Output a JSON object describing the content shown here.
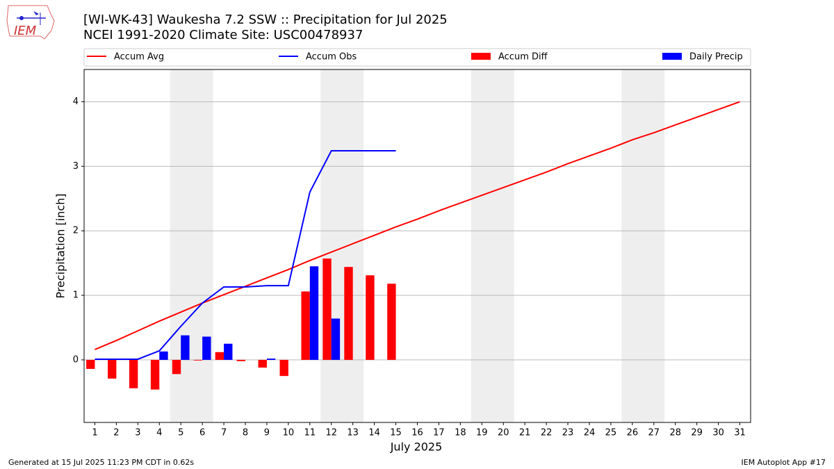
{
  "chart_data": {
    "type": "bar",
    "title": "[WI-WK-43] Waukesha 7.2 SSW :: Precipitation for Jul 2025",
    "subtitle": "NCEI 1991-2020 Climate Site: USC00478937",
    "x_label": "July 2025",
    "y_label": "Precipitation [inch]",
    "logo_text": "IEM",
    "footer_left": "Generated at 15 Jul 2025 11:23 PM CDT in 0.62s",
    "footer_right": "IEM Autoplot App #17",
    "x": [
      1,
      2,
      3,
      4,
      5,
      6,
      7,
      8,
      9,
      10,
      11,
      12,
      13,
      14,
      15,
      16,
      17,
      18,
      19,
      20,
      21,
      22,
      23,
      24,
      25,
      26,
      27,
      28,
      29,
      30,
      31
    ],
    "xlim": [
      0.5,
      31.5
    ],
    "xticks": [
      1,
      2,
      3,
      4,
      5,
      6,
      7,
      8,
      9,
      10,
      11,
      12,
      13,
      14,
      15,
      16,
      17,
      18,
      19,
      20,
      21,
      22,
      23,
      24,
      25,
      26,
      27,
      28,
      29,
      30,
      31
    ],
    "ylim": [
      -0.97,
      4.5
    ],
    "yticks": [
      0,
      1,
      2,
      3,
      4
    ],
    "grid": true,
    "shaded_spans": [
      [
        4.5,
        6.5
      ],
      [
        11.5,
        13.5
      ],
      [
        18.5,
        20.5
      ],
      [
        25.5,
        27.5
      ]
    ],
    "shade_color": "#eeeeee",
    "series": [
      {
        "name": "Accum Avg",
        "kind": "line",
        "color": "#ff0000",
        "values": [
          0.16,
          0.3,
          0.45,
          0.6,
          0.74,
          0.88,
          1.01,
          1.14,
          1.27,
          1.4,
          1.54,
          1.67,
          1.8,
          1.93,
          2.06,
          2.18,
          2.31,
          2.43,
          2.55,
          2.67,
          2.79,
          2.91,
          3.04,
          3.16,
          3.28,
          3.41,
          3.52,
          3.64,
          3.76,
          3.88,
          4.0
        ]
      },
      {
        "name": "Accum Obs",
        "kind": "line",
        "color": "#0000ff",
        "values": [
          0.01,
          0.01,
          0.01,
          0.14,
          0.52,
          0.88,
          1.13,
          1.13,
          1.15,
          1.15,
          2.6,
          3.24,
          3.24,
          3.24,
          3.24,
          null,
          null,
          null,
          null,
          null,
          null,
          null,
          null,
          null,
          null,
          null,
          null,
          null,
          null,
          null,
          null
        ]
      },
      {
        "name": "Accum Diff",
        "kind": "bar",
        "color": "#ff0000",
        "offset": -0.4,
        "values": [
          -0.14,
          -0.29,
          -0.44,
          -0.46,
          -0.22,
          -0.01,
          0.12,
          -0.02,
          -0.12,
          -0.25,
          1.06,
          1.57,
          1.44,
          1.31,
          1.18,
          null,
          null,
          null,
          null,
          null,
          null,
          null,
          null,
          null,
          null,
          null,
          null,
          null,
          null,
          null,
          null
        ]
      },
      {
        "name": "Daily Precip",
        "kind": "bar",
        "color": "#0000ff",
        "offset": 0,
        "values": [
          0.01,
          0,
          0,
          0.13,
          0.38,
          0.36,
          0.25,
          0,
          0.02,
          0,
          1.45,
          0.64,
          0,
          0,
          0,
          null,
          null,
          null,
          null,
          null,
          null,
          null,
          null,
          null,
          null,
          null,
          null,
          null,
          null,
          null,
          null
        ]
      }
    ]
  }
}
